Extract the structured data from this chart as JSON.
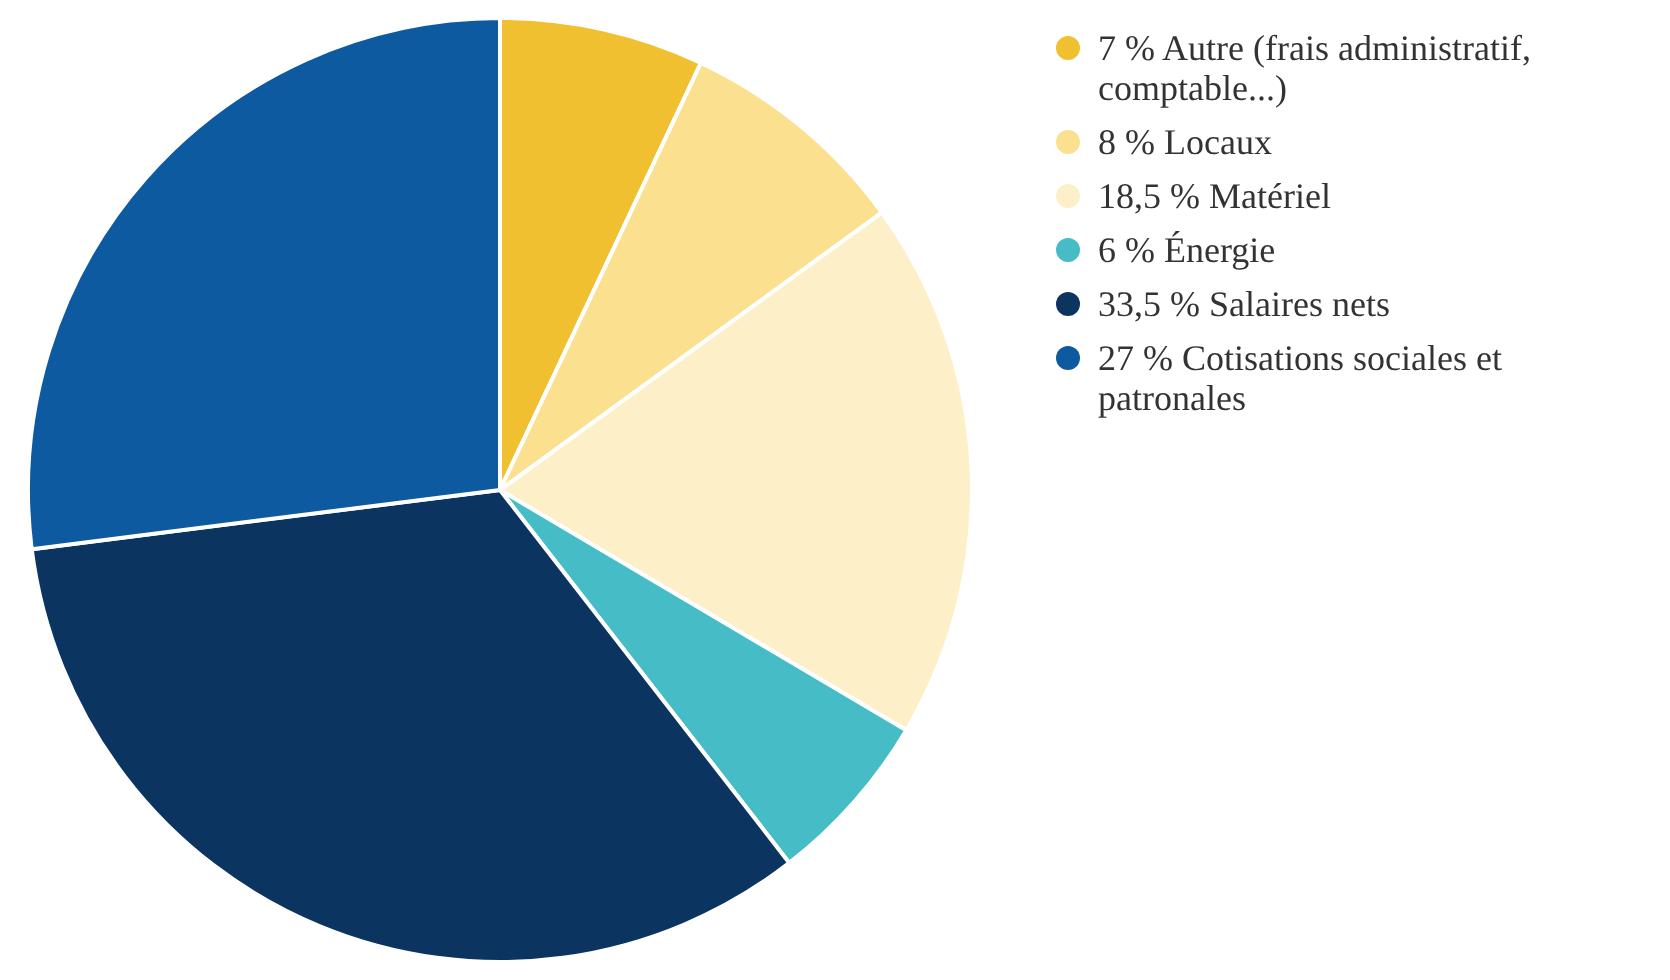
{
  "chart_data": {
    "type": "pie",
    "categories": [
      "Autre (frais administratif, comptable...)",
      "Locaux",
      "Matériel",
      "Énergie",
      "Salaires nets",
      "Cotisations sociales et patronales"
    ],
    "values": [
      7,
      8,
      18.5,
      6,
      33.5,
      27
    ],
    "value_labels": [
      "7 %",
      "8 %",
      "18,5 %",
      "6 %",
      "33,5 %",
      "27 %"
    ],
    "colors": [
      "#f0c030",
      "#fbe08f",
      "#fdf0c8",
      "#45bcc6",
      "#0b3560",
      "#0d5aa0"
    ],
    "legend": "right"
  }
}
